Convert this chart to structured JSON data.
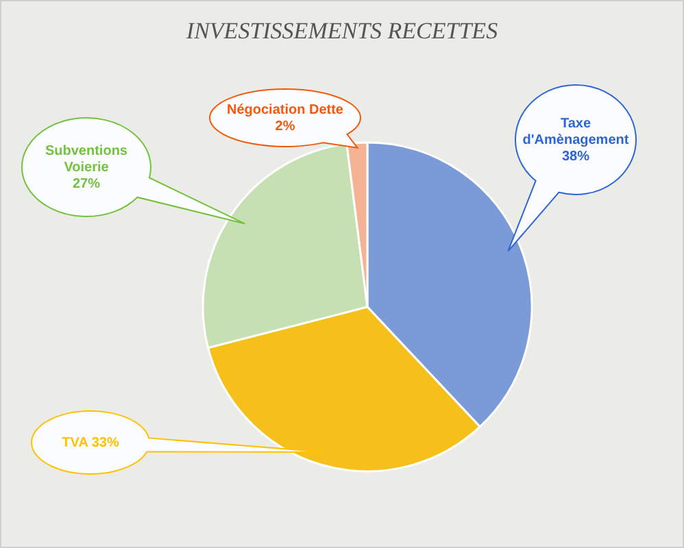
{
  "chart_data": {
    "type": "pie",
    "title": "INVESTISSEMENTS RECETTES",
    "categories": [
      "Taxe d'Amènagement",
      "TVA",
      "Subventions Voierie",
      "Négociation Dette"
    ],
    "values": [
      38,
      33,
      27,
      2
    ],
    "colors": [
      "#7b9bd8",
      "#f5c01a",
      "#c6e0b4",
      "#f4b393"
    ],
    "value_labels": [
      "38%",
      "33%",
      "27%",
      "2%"
    ]
  }
}
